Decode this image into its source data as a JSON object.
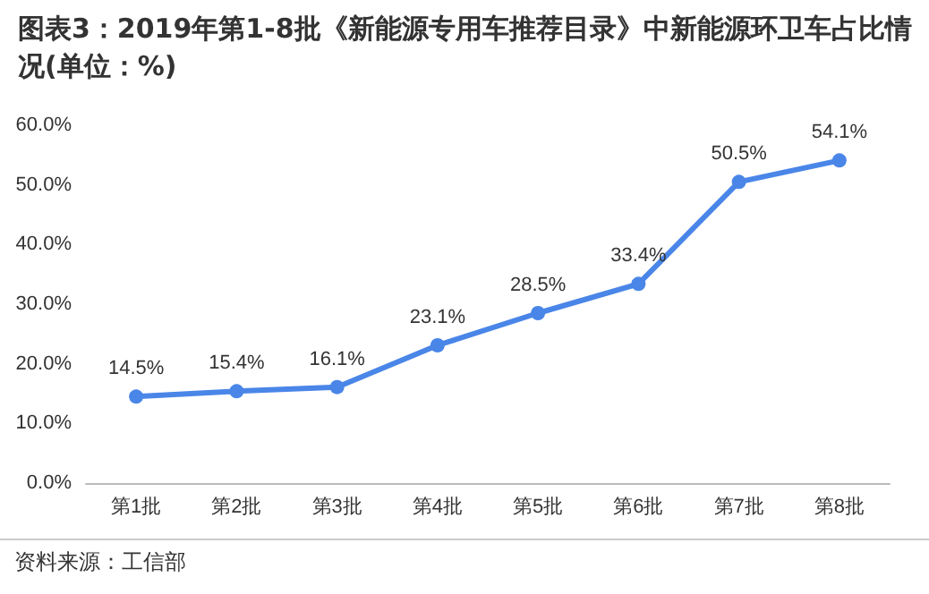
{
  "chart_data": {
    "type": "line",
    "title": "图表3：2019年第1-8批《新能源专用车推荐目录》中新能源环卫车占比情况(单位：%)",
    "categories": [
      "第1批",
      "第2批",
      "第3批",
      "第4批",
      "第5批",
      "第6批",
      "第7批",
      "第8批"
    ],
    "series": [
      {
        "color": "#4a86e8",
        "values": [
          14.5,
          15.4,
          16.1,
          23.1,
          28.5,
          33.4,
          50.5,
          54.1
        ],
        "value_labels": [
          "14.5%",
          "15.4%",
          "16.1%",
          "23.1%",
          "28.5%",
          "33.4%",
          "50.5%",
          "54.1%"
        ]
      }
    ],
    "ylim": [
      0,
      60
    ],
    "yticks": [
      {
        "value": 0,
        "label": "0.0%"
      },
      {
        "value": 10,
        "label": "10.0%"
      },
      {
        "value": 20,
        "label": "20.0%"
      },
      {
        "value": 30,
        "label": "30.0%"
      },
      {
        "value": 40,
        "label": "40.0%"
      },
      {
        "value": 50,
        "label": "50.0%"
      },
      {
        "value": 60,
        "label": "60.0%"
      }
    ],
    "grid": false,
    "marker": "circle",
    "line_style": "solid",
    "annotations": [
      "资料来源：工信部"
    ]
  }
}
